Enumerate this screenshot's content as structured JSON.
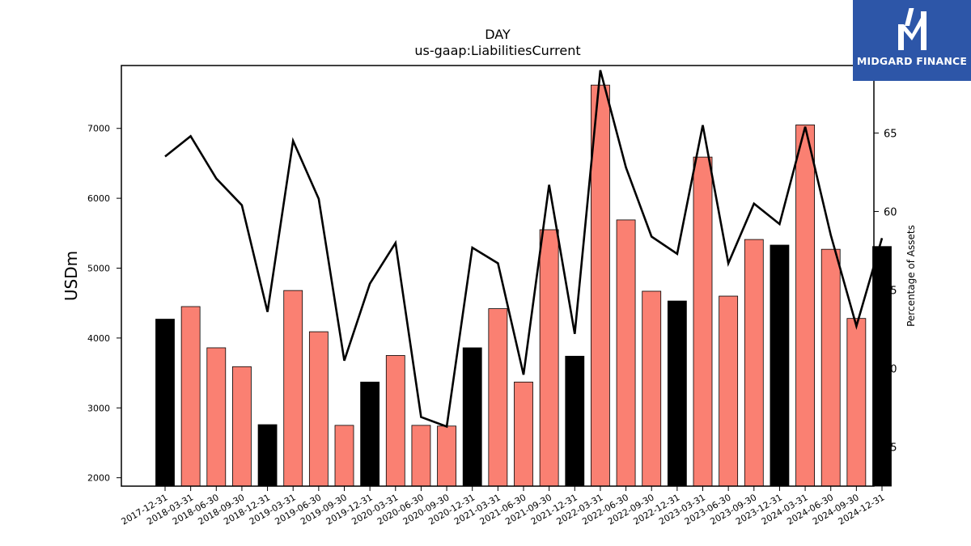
{
  "header": {
    "title": "DAY",
    "subtitle": "us-gaap:LiabilitiesCurrent"
  },
  "logo": {
    "brand": "MIDGARD FINANCE",
    "color": "#2d56a8"
  },
  "chart_data": {
    "type": "bar",
    "title": "DAY",
    "subtitle": "us-gaap:LiabilitiesCurrent",
    "ylabel": "USDm",
    "y2label": "Percentage of Assets",
    "ylim": [
      1880,
      7900
    ],
    "y2lim": [
      42.5,
      69.3
    ],
    "yticks": [
      2000,
      3000,
      4000,
      5000,
      6000,
      7000
    ],
    "y2ticks": [
      45,
      50,
      55,
      60,
      65
    ],
    "categories": [
      "2017-12-31",
      "2018-03-31",
      "2018-06-30",
      "2018-09-30",
      "2018-12-31",
      "2019-03-31",
      "2019-06-30",
      "2019-09-30",
      "2019-12-31",
      "2020-03-31",
      "2020-06-30",
      "2020-09-30",
      "2020-12-31",
      "2021-03-31",
      "2021-06-30",
      "2021-09-30",
      "2021-12-31",
      "2022-03-31",
      "2022-06-30",
      "2022-09-30",
      "2022-12-31",
      "2023-03-31",
      "2023-06-30",
      "2023-09-30",
      "2023-12-31",
      "2024-03-31",
      "2024-06-30",
      "2024-09-30",
      "2024-12-31"
    ],
    "series": [
      {
        "kind": "bar",
        "values": [
          4270,
          4450,
          3860,
          3590,
          2760,
          4680,
          4090,
          2750,
          3370,
          3750,
          2750,
          2740,
          3860,
          4420,
          3370,
          5550,
          3740,
          7620,
          5690,
          4670,
          4530,
          6590,
          4600,
          5410,
          5330,
          7050,
          5270,
          4280,
          5310
        ],
        "colors": [
          "#000000",
          "#fa8072",
          "#fa8072",
          "#fa8072",
          "#000000",
          "#fa8072",
          "#fa8072",
          "#fa8072",
          "#000000",
          "#fa8072",
          "#fa8072",
          "#fa8072",
          "#000000",
          "#fa8072",
          "#fa8072",
          "#fa8072",
          "#000000",
          "#fa8072",
          "#fa8072",
          "#fa8072",
          "#000000",
          "#fa8072",
          "#fa8072",
          "#fa8072",
          "#000000",
          "#fa8072",
          "#fa8072",
          "#fa8072",
          "#000000"
        ]
      },
      {
        "kind": "line",
        "axis": "right",
        "color": "#000000",
        "values": [
          63.5,
          64.8,
          62.1,
          60.4,
          53.6,
          64.5,
          60.8,
          50.5,
          55.4,
          58.0,
          46.9,
          46.3,
          57.7,
          56.7,
          49.6,
          61.7,
          52.2,
          69.0,
          62.8,
          58.4,
          57.3,
          65.5,
          56.7,
          60.5,
          59.2,
          65.4,
          58.5,
          52.7,
          58.3
        ]
      }
    ],
    "colors": {
      "quarter": "#fa8072",
      "year_end": "#000000"
    },
    "grid": false
  }
}
